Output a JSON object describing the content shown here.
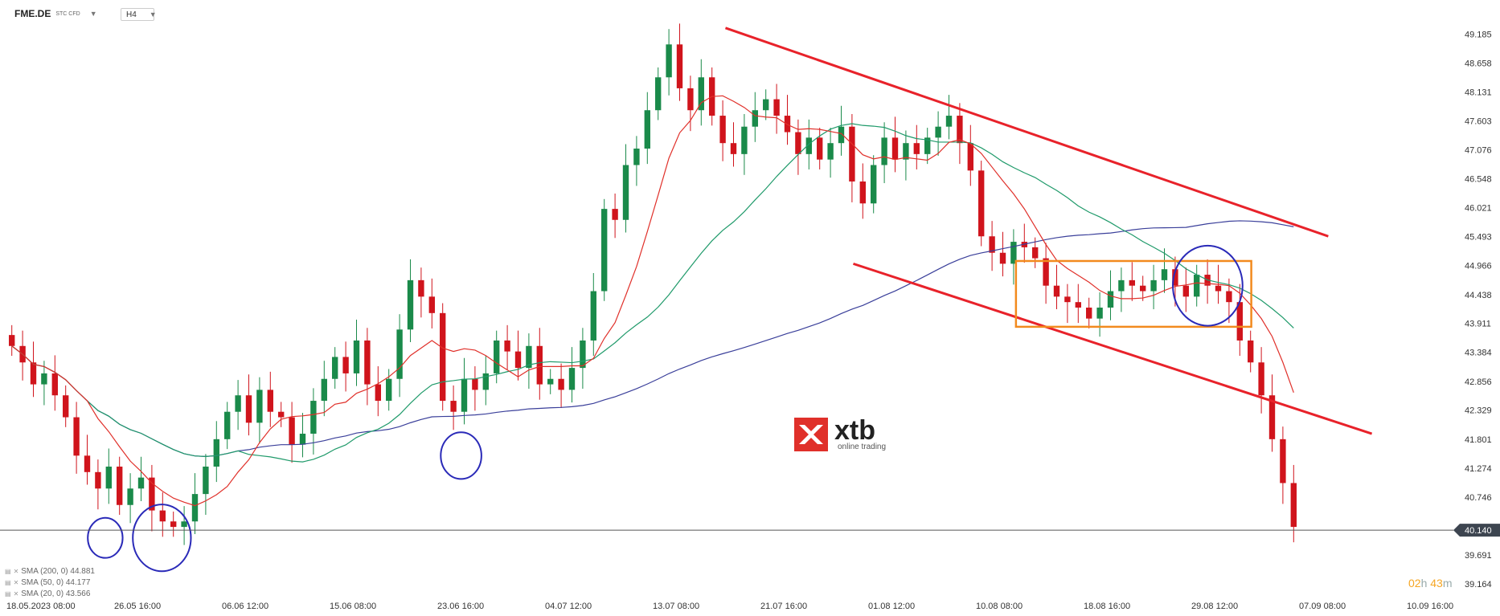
{
  "header": {
    "symbol": "FME.DE",
    "symbol_sub": "STC CFD",
    "timeframe": "H4"
  },
  "indicators": [
    {
      "label": "SMA (200, 0) 44.881",
      "color": "#3a3f9a"
    },
    {
      "label": "SMA (50, 0) 44.177",
      "color": "#1f9a6a"
    },
    {
      "label": "SMA (20, 0) 43.566",
      "color": "#e0302a"
    }
  ],
  "logo": {
    "word": "xtb",
    "tagline": "online trading"
  },
  "timer": {
    "hours": "02",
    "h": "h",
    "minutes": "43",
    "m": "m"
  },
  "colors": {
    "up": "#1a8a4a",
    "down": "#d0141c",
    "sma200": "#3a3f9a",
    "sma50": "#1f9a6a",
    "sma20": "#e0302a",
    "channel": "#e8222a",
    "box": "#f28a1e",
    "circle": "#2a2ab8"
  },
  "chart_data": {
    "type": "candlestick",
    "x_tick_labels": [
      "18.05.2023 08:00",
      "26.05 16:00",
      "06.06 12:00",
      "15.06 08:00",
      "23.06 16:00",
      "04.07 12:00",
      "13.07 08:00",
      "21.07 16:00",
      "01.08 12:00",
      "10.08 08:00",
      "18.08 16:00",
      "29.08 12:00",
      "07.09 08:00",
      "10.09 16:00"
    ],
    "y_tick_labels": [
      "49.185",
      "48.658",
      "48.131",
      "47.603",
      "47.076",
      "46.548",
      "46.021",
      "45.493",
      "44.966",
      "44.438",
      "43.911",
      "43.384",
      "42.856",
      "42.329",
      "41.801",
      "41.274",
      "40.746",
      "40.140",
      "39.691",
      "39.164"
    ],
    "ylim": [
      39.0,
      49.4
    ],
    "current_price": "40.140",
    "current_price_value": 40.14,
    "close": [
      43.5,
      43.2,
      42.8,
      43.0,
      42.6,
      42.2,
      41.5,
      41.2,
      40.9,
      41.3,
      40.6,
      40.9,
      41.1,
      40.5,
      40.3,
      40.2,
      40.3,
      40.8,
      41.3,
      41.8,
      42.3,
      42.6,
      42.1,
      42.7,
      42.3,
      42.2,
      41.7,
      41.9,
      42.5,
      42.9,
      43.3,
      43.0,
      43.6,
      42.8,
      42.5,
      42.9,
      43.8,
      44.7,
      44.4,
      44.1,
      42.5,
      42.3,
      42.9,
      42.7,
      43.0,
      43.6,
      43.4,
      43.1,
      43.5,
      42.8,
      42.9,
      42.7,
      43.1,
      43.6,
      44.5,
      46.0,
      45.8,
      46.8,
      47.1,
      47.8,
      48.4,
      49.0,
      48.2,
      47.8,
      48.4,
      47.7,
      47.2,
      47.0,
      47.5,
      47.8,
      48.0,
      47.7,
      47.4,
      47.0,
      47.3,
      46.9,
      47.2,
      47.5,
      46.5,
      46.1,
      46.8,
      47.3,
      46.9,
      47.2,
      47.0,
      47.3,
      47.5,
      47.7,
      47.2,
      46.7,
      45.5,
      45.2,
      45.0,
      45.4,
      45.3,
      45.1,
      44.6,
      44.4,
      44.3,
      44.2,
      44.0,
      44.2,
      44.5,
      44.7,
      44.6,
      44.5,
      44.7,
      44.9,
      44.6,
      44.4,
      44.8,
      44.6,
      44.5,
      44.3,
      43.6,
      43.2,
      42.6,
      41.8,
      41.0,
      40.2
    ],
    "series": [
      {
        "name": "SMA (200, 0) 44.881"
      },
      {
        "name": "SMA (50, 0) 44.177"
      },
      {
        "name": "SMA (20, 0) 43.566"
      }
    ],
    "annotations": [
      {
        "kind": "channel-line",
        "from": [
          0.495,
          49.3
        ],
        "to": [
          0.91,
          45.5
        ]
      },
      {
        "kind": "channel-line",
        "from": [
          0.583,
          45.0
        ],
        "to": [
          0.94,
          41.9
        ]
      },
      {
        "kind": "rectangle",
        "x": [
          0.695,
          0.857
        ],
        "y": [
          43.85,
          45.05
        ]
      },
      {
        "kind": "circle",
        "cx": 0.068,
        "cy": 40.0,
        "r": 0.012
      },
      {
        "kind": "circle",
        "cx": 0.107,
        "cy": 40.0,
        "r": 0.02
      },
      {
        "kind": "circle",
        "cx": 0.313,
        "cy": 41.5,
        "r": 0.014
      },
      {
        "kind": "circle",
        "cx": 0.827,
        "cy": 44.6,
        "r": 0.024
      }
    ]
  }
}
